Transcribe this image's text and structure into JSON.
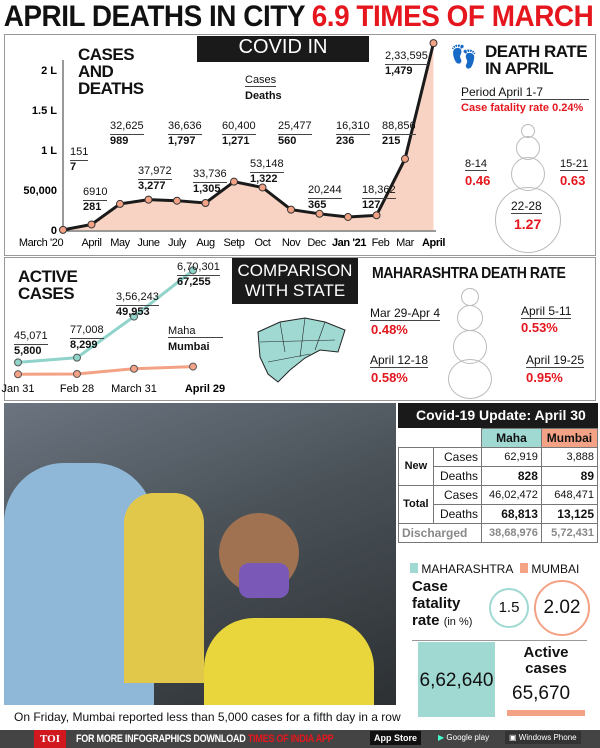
{
  "title": {
    "main": "APRIL DEATHS IN CITY",
    "highlight": "6.9 TIMES OF MARCH"
  },
  "covid_mumbai": {
    "banner": "COVID IN MUMBAI",
    "heading": "CASES AND DEATHS",
    "legend_cases": "Cases",
    "legend_deaths": "Deaths"
  },
  "death_rate_april": {
    "heading": "DEATH RATE IN APRIL",
    "period": "Period April 1-7",
    "cfr_label": "Case fatality rate",
    "cfr_value": "0.24%",
    "items": [
      {
        "label": "8-14",
        "value": "0.46"
      },
      {
        "label": "15-21",
        "value": "0.63"
      },
      {
        "label": "22-28",
        "value": "1.27"
      }
    ]
  },
  "comparison": {
    "banner": "COMPARISON WITH STATE",
    "active_heading": "ACTIVE CASES",
    "legend_maha": "Maha",
    "legend_mumbai": "Mumbai"
  },
  "maha_death_rate": {
    "heading": "MAHARASHTRA DEATH RATE",
    "items": [
      {
        "label": "Mar 29-Apr 4",
        "value": "0.48%"
      },
      {
        "label": "April 5-11",
        "value": "0.53%"
      },
      {
        "label": "April 12-18",
        "value": "0.58%"
      },
      {
        "label": "April 19-25",
        "value": "0.95%"
      }
    ]
  },
  "photo": {
    "caption": "On Friday, Mumbai reported less than 5,000 cases for a fifth day in a row"
  },
  "update": {
    "title": "Covid-19 Update: April 30",
    "col_maha": "Maha",
    "col_mumbai": "Mumbai",
    "new_label": "New",
    "total_label": "Total",
    "cases": "Cases",
    "deaths": "Deaths",
    "new_cases": [
      "62,919",
      "3,888"
    ],
    "new_deaths": [
      "828",
      "89"
    ],
    "total_cases": [
      "46,02,472",
      "648,471"
    ],
    "total_deaths": [
      "68,813",
      "13,125"
    ],
    "discharged_label": "Discharged",
    "discharged": [
      "38,68,976",
      "5,72,431"
    ],
    "legend_maha": "MAHARASHTRA",
    "legend_mumbai": "MUMBAI",
    "cfr_label1": "Case",
    "cfr_label2": "fatality",
    "cfr_label3": "rate",
    "cfr_unit": "(in %)",
    "cfr_maha": "1.5",
    "cfr_mumbai": "2.02",
    "active_label": "Active cases",
    "active_maha": "6,62,640",
    "active_mumbai": "65,670"
  },
  "footer": {
    "logo": "TOI",
    "text": "FOR MORE INFOGRAPHICS DOWNLOAD",
    "app": "TIMES OF INDIA APP",
    "appstore": "App Store",
    "googleplay": "Google play",
    "windows": "Windows Phone"
  },
  "colors": {
    "red": "#e5161d",
    "maha": "#9fd9d2",
    "mumbai": "#f4a285",
    "line": "#1a1a1a"
  },
  "chart_data": [
    {
      "type": "area",
      "title": "COVID IN MUMBAI",
      "subtitle": "CASES AND DEATHS",
      "categories": [
        "March '20",
        "April",
        "May",
        "June",
        "July",
        "Aug",
        "Setp",
        "Oct",
        "Nov",
        "Dec",
        "Jan '21",
        "Feb",
        "Mar",
        "April"
      ],
      "y_ticks": [
        "0",
        "50,000",
        "1 L",
        "1.5 L",
        "2 L"
      ],
      "ylim": [
        0,
        233595
      ],
      "series": [
        {
          "name": "Cases",
          "values": [
            151,
            6910,
            32625,
            37972,
            36636,
            33736,
            60400,
            53148,
            25477,
            20244,
            16310,
            18362,
            88856,
            233595
          ],
          "labels": [
            "151",
            "6910",
            "32,625",
            "37,972",
            "36,636",
            "33,736",
            "60,400",
            "53,148",
            "25,477",
            "20,244",
            "16,310",
            "18,362",
            "88,856",
            "2,33,595"
          ]
        },
        {
          "name": "Deaths",
          "values": [
            7,
            281,
            989,
            3277,
            1797,
            1305,
            1271,
            1322,
            560,
            365,
            236,
            127,
            215,
            1479
          ],
          "labels": [
            "7",
            "281",
            "989",
            "3,277",
            "1,797",
            "1,305",
            "1,271",
            "1,322",
            "560",
            "365",
            "236",
            "127",
            "215",
            "1,479"
          ]
        }
      ]
    },
    {
      "type": "line",
      "title": "ACTIVE CASES",
      "categories": [
        "Jan 31",
        "Feb 28",
        "March 31",
        "April 29"
      ],
      "series": [
        {
          "name": "Maha",
          "values": [
            45071,
            77008,
            356243,
            670301
          ],
          "labels": [
            "45,071",
            "77,008",
            "3,56,243",
            "6,70,301"
          ]
        },
        {
          "name": "Mumbai",
          "values": [
            5800,
            8299,
            49953,
            67255
          ],
          "labels": [
            "5,800",
            "8,299",
            "49,953",
            "67,255"
          ]
        }
      ]
    }
  ]
}
